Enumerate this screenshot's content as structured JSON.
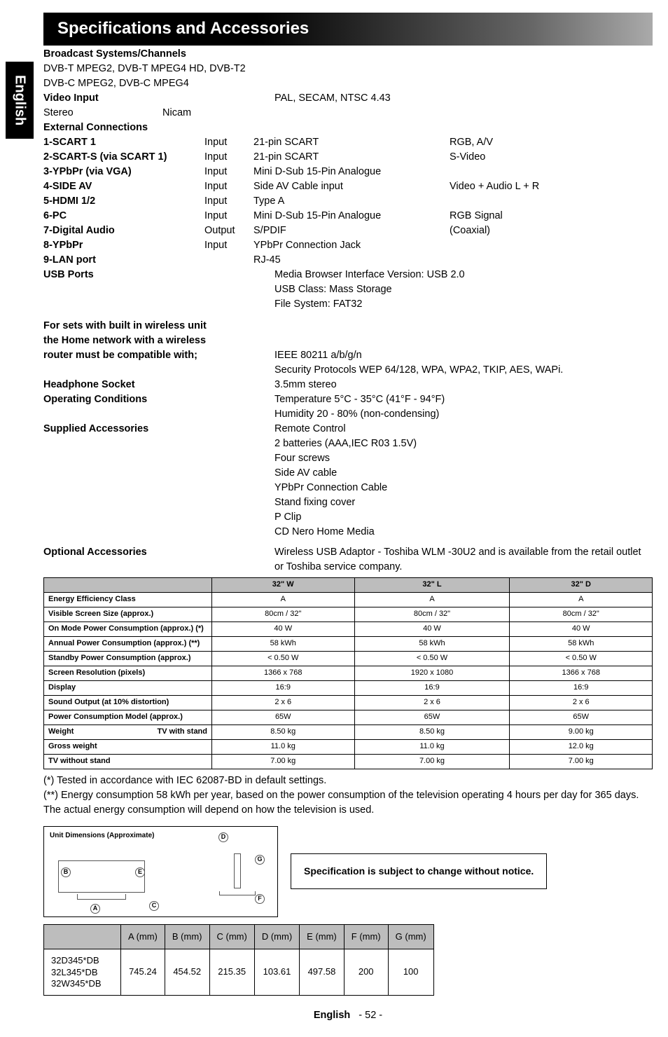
{
  "sideTab": "English",
  "banner": "Specifications and Accessories",
  "sections": {
    "broadcast": {
      "heading": "Broadcast Systems/Channels",
      "line1": "DVB-T MPEG2, DVB-T MPEG4 HD, DVB-T2",
      "line2": "DVB-C MPEG2, DVB-C MPEG4"
    },
    "videoInput": {
      "label": "Video Input",
      "value": "PAL, SECAM, NTSC 4.43"
    },
    "stereo": {
      "label": "Stereo",
      "value": "Nicam"
    },
    "extConn": {
      "heading": "External Connections"
    },
    "conn": [
      {
        "name": "1-SCART 1",
        "dir": "Input",
        "desc": "21-pin SCART",
        "extra": "RGB, A/V"
      },
      {
        "name": "2-SCART-S (via SCART 1)",
        "dir": "Input",
        "desc": "21-pin SCART",
        "extra": "S-Video"
      },
      {
        "name": "3-YPbPr (via VGA)",
        "dir": "Input",
        "desc": "Mini D-Sub 15-Pin Analogue",
        "extra": ""
      },
      {
        "name": "4-SIDE AV",
        "dir": "Input",
        "desc": "Side AV Cable input",
        "extra": "Video + Audio L + R"
      },
      {
        "name": "5-HDMI 1/2",
        "dir": "Input",
        "desc": "Type A",
        "extra": ""
      },
      {
        "name": "6-PC",
        "dir": "Input",
        "desc": "Mini D-Sub 15-Pin Analogue",
        "extra": "RGB Signal"
      },
      {
        "name": "7-Digital Audio",
        "dir": "Output",
        "desc": "S/PDIF",
        "extra": "(Coaxial)"
      },
      {
        "name": "8-YPbPr",
        "dir": "Input",
        "desc": "YPbPr Connection Jack",
        "extra": ""
      },
      {
        "name": "9-LAN port",
        "dir": "",
        "desc": "RJ-45",
        "extra": ""
      }
    ],
    "usb": {
      "label": "USB Ports",
      "l1": "Media Browser Interface Version: USB 2.0",
      "l2": "USB Class: Mass Storage",
      "l3": "File System: FAT32"
    },
    "wireless": {
      "h1": "For sets with built in wireless unit",
      "h2": "the Home network with a wireless",
      "h3": "router must be compatible with;",
      "v1": "IEEE 80211 a/b/g/n",
      "v2": "Security Protocols WEP 64/128, WPA, WPA2, TKIP, AES, WAPi."
    },
    "headphone": {
      "label": "Headphone Socket",
      "value": "3.5mm stereo"
    },
    "operating": {
      "label": "Operating Conditions",
      "v1": "Temperature 5°C - 35°C (41°F - 94°F)",
      "v2": "Humidity 20 - 80% (non-condensing)"
    },
    "supplied": {
      "label": "Supplied Accessories",
      "items": [
        "Remote Control",
        "2 batteries (AAA,IEC R03 1.5V)",
        "Four screws",
        "Side AV cable",
        "YPbPr Connection Cable",
        "Stand fixing cover",
        "P Clip",
        "CD Nero Home Media"
      ]
    },
    "optional": {
      "label": "Optional Accessories",
      "value": "Wireless USB Adaptor - Toshiba WLM -30U2 and is available from the retail outlet or Toshiba service company."
    }
  },
  "specTable": {
    "headers": [
      "",
      "32\" W",
      "32\" L",
      "32\" D"
    ],
    "rows": [
      {
        "label": "Energy Efficiency Class",
        "cells": [
          "A",
          "A",
          "A"
        ]
      },
      {
        "label": "Visible Screen Size (approx.)",
        "cells": [
          "80cm / 32\"",
          "80cm / 32\"",
          "80cm / 32\""
        ]
      },
      {
        "label": "On Mode Power Consumption (approx.) (*)",
        "cells": [
          "40 W",
          "40 W",
          "40 W"
        ]
      },
      {
        "label": "Annual Power Consumption (approx.) (**)",
        "cells": [
          "58 kWh",
          "58 kWh",
          "58 kWh"
        ]
      },
      {
        "label": "Standby Power Consumption (approx.)",
        "cells": [
          "< 0.50 W",
          "< 0.50 W",
          "< 0.50 W"
        ]
      },
      {
        "label": "Screen Resolution (pixels)",
        "cells": [
          "1366 x 768",
          "1920 x 1080",
          "1366 x 768"
        ]
      },
      {
        "label": "Display",
        "cells": [
          "16:9",
          "16:9",
          "16:9"
        ]
      },
      {
        "label": "Sound Output (at 10% distortion)",
        "cells": [
          "2 x 6",
          "2 x 6",
          "2 x 6"
        ]
      },
      {
        "label": "Power Consumption Model (approx.)",
        "cells": [
          "65W",
          "65W",
          "65W"
        ]
      }
    ],
    "weightRows": [
      {
        "left": "Weight",
        "right": "TV with stand",
        "cells": [
          "8.50 kg",
          "8.50 kg",
          "9.00 kg"
        ]
      },
      {
        "left": "",
        "right": "Gross weight",
        "cells": [
          "11.0 kg",
          "11.0 kg",
          "12.0 kg"
        ]
      },
      {
        "left": "",
        "right": "TV without stand",
        "cells": [
          "7.00 kg",
          "7.00 kg",
          "7.00 kg"
        ]
      }
    ]
  },
  "footnotes": {
    "f1": "(*) Tested in accordance with IEC 62087-BD in default settings.",
    "f2": "(**) Energy consumption 58 kWh per year, based on the power consumption of the television operating 4 hours per day for 365 days. The actual energy consumption will depend on how the television is used."
  },
  "dimsDiagram": {
    "title": "Unit Dimensions (Approximate)",
    "labels": {
      "A": "A",
      "B": "B",
      "C": "C",
      "D": "D",
      "E": "E",
      "F": "F",
      "G": "G"
    }
  },
  "notice": "Specification is subject to change without notice.",
  "dimTable": {
    "headers": [
      "A (mm)",
      "B (mm)",
      "C (mm)",
      "D (mm)",
      "E (mm)",
      "F (mm)",
      "G (mm)"
    ],
    "models": "32D345*DB\n32L345*DB\n32W345*DB",
    "values": [
      "745.24",
      "454.52",
      "215.35",
      "103.61",
      "497.58",
      "200",
      "100"
    ]
  },
  "footer": {
    "lang": "English",
    "page": "- 52 -"
  }
}
